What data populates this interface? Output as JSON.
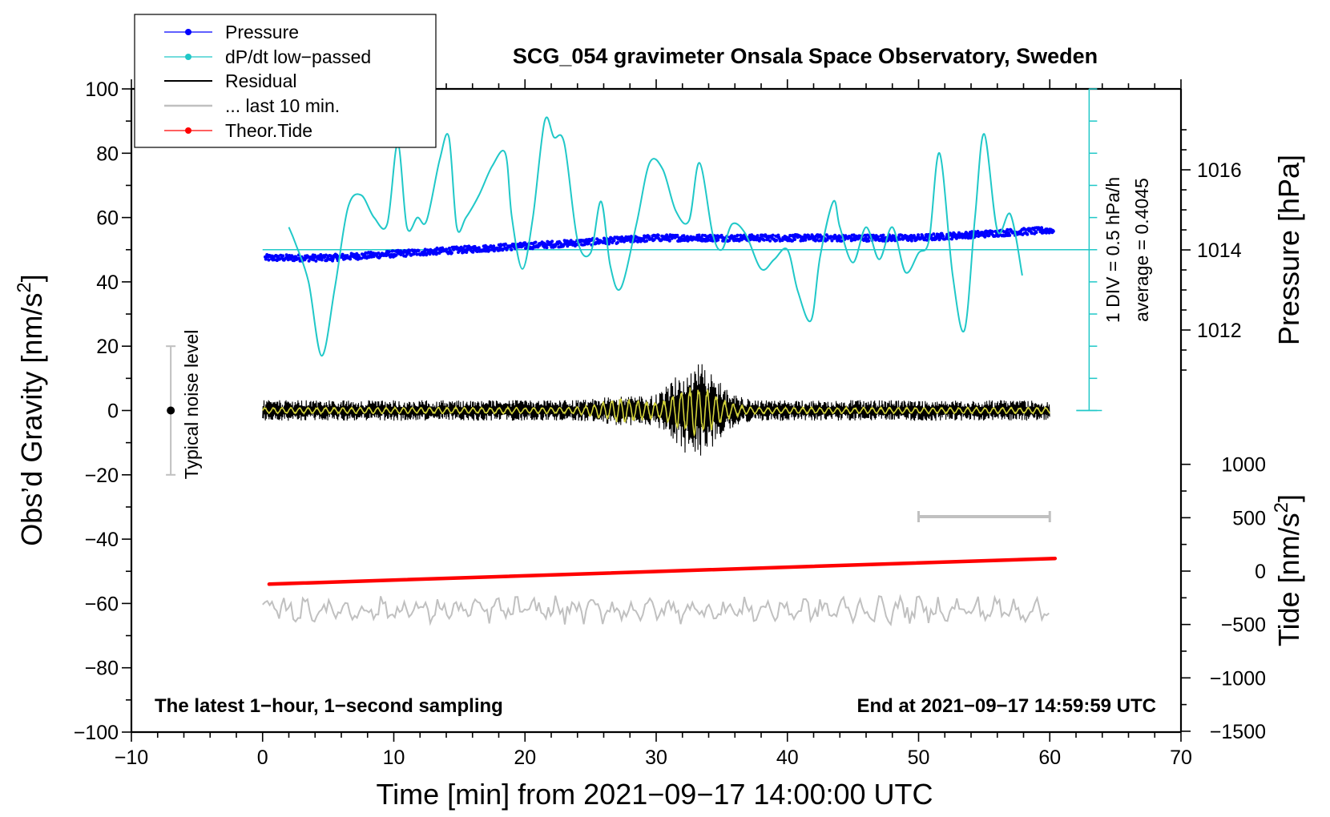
{
  "chart_data": {
    "type": "line",
    "title": "SCG_054 gravimeter Onsala Space Observatory, Sweden",
    "xlabel": "Time [min] from 2021−09−17 14:00:00 UTC",
    "ylabel_left": "Obs’d Gravity [nm/s²]",
    "ylabel_right_pressure": "Pressure [hPa]",
    "ylabel_right_tide": "Tide [nm/s²]",
    "xlim": [
      -10,
      70
    ],
    "ylim": [
      -100,
      100
    ],
    "x_ticks": [
      "−10",
      "0",
      "10",
      "20",
      "30",
      "40",
      "50",
      "60",
      "70"
    ],
    "y_ticks": [
      "−100",
      "−80",
      "−60",
      "−40",
      "−20",
      "0",
      "20",
      "40",
      "60",
      "80",
      "100"
    ],
    "pressure_ticks": [
      "1012",
      "1014",
      "1016"
    ],
    "tide_ticks": [
      "−1500",
      "−1000",
      "−500",
      "0",
      "500",
      "1000"
    ],
    "legend": [
      {
        "label": "Pressure",
        "color": "#0000ff",
        "marker": true
      },
      {
        "label": "dP/dt low−passed",
        "color": "#20c8c8",
        "marker": true
      },
      {
        "label": "Residual",
        "color": "#000000",
        "marker": false
      },
      {
        "label": "... last 10 min.",
        "color": "#c0c0c0",
        "marker": false
      },
      {
        "label": "Theor.Tide",
        "color": "#ff0000",
        "marker": true
      }
    ],
    "annotations": {
      "noise": "Typical noise level",
      "div": "1 DIV = 0.5 hPa/h",
      "average": "average = 0.4045",
      "bottom_left": "The latest 1−hour, 1−second sampling",
      "bottom_right": "End at 2021−09−17 14:59:59 UTC"
    },
    "noise_bar": {
      "x": -7,
      "center": 0,
      "range": [
        -20,
        20
      ]
    },
    "last10_bar": {
      "x_range": [
        50,
        60
      ],
      "y": -33
    },
    "series": [
      {
        "name": "Pressure",
        "unit": "hPa",
        "x": [
          0,
          5,
          10,
          15,
          20,
          25,
          30,
          35,
          40,
          45,
          50,
          55,
          60.3
        ],
        "values": [
          1013.8,
          1013.8,
          1013.9,
          1014.0,
          1014.1,
          1014.2,
          1014.3,
          1014.3,
          1014.3,
          1014.3,
          1014.3,
          1014.4,
          1014.5
        ]
      },
      {
        "name": "dP/dt low−passed",
        "unit": "gravity-axis units",
        "x": [
          2,
          2.5,
          3.5,
          4.5,
          5.5,
          6.5,
          7.5,
          8.5,
          9.5,
          10.3,
          11,
          11.8,
          12.5,
          13.5,
          14.2,
          14.8,
          15.5,
          16.5,
          17.5,
          18.5,
          19,
          19.8,
          20.6,
          21.5,
          22.2,
          23,
          24,
          25,
          25.8,
          26.5,
          27.3,
          28.5,
          29.5,
          30.5,
          31.5,
          32.5,
          33.3,
          34.3,
          35,
          35.8,
          36.8,
          38,
          39,
          40,
          40.8,
          41.8,
          42.5,
          43.5,
          44,
          45,
          46,
          47,
          48,
          49,
          50,
          50.8,
          51.6,
          52.6,
          53.5,
          54.3,
          55,
          56,
          57,
          57.9
        ],
        "values": [
          57,
          52,
          40,
          17,
          38,
          63,
          67,
          60,
          58,
          83,
          57,
          60,
          59,
          78,
          85,
          57,
          60,
          67,
          76,
          80,
          60,
          44,
          60,
          90,
          85,
          83,
          53,
          49,
          65,
          45,
          38,
          58,
          77,
          75,
          62,
          59,
          77,
          55,
          50,
          58,
          55,
          44,
          47,
          50,
          37,
          28,
          48,
          65,
          57,
          46,
          57,
          47,
          57,
          43,
          49,
          53,
          80,
          42,
          25,
          60,
          86,
          56,
          61,
          42
        ]
      },
      {
        "name": "Theor.Tide",
        "unit": "nm/s²",
        "x": [
          0.5,
          60.4
        ],
        "values": [
          -54,
          -46
        ]
      },
      {
        "name": "Residual",
        "unit": "nm/s²",
        "x_range": [
          0,
          60
        ],
        "values": [
          0
        ],
        "amplitude_max": 15,
        "burst_center_min": 33
      },
      {
        "name": "... last 10 min.",
        "unit": "nm/s²",
        "x_range": [
          0,
          60
        ],
        "values": [
          -62
        ]
      }
    ]
  }
}
